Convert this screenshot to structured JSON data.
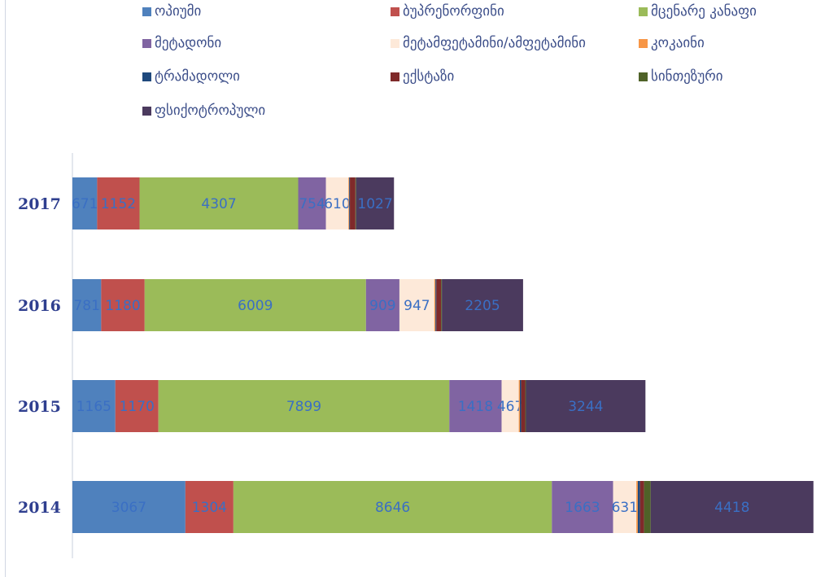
{
  "chart_data": {
    "type": "bar",
    "orientation": "horizontal",
    "stacked": true,
    "title": "",
    "xlabel": "",
    "ylabel": "",
    "categories": [
      "2017",
      "2016",
      "2015",
      "2014"
    ],
    "series": [
      {
        "name": "ოპიუმი",
        "color": "#4f81bd",
        "values": [
          671,
          781,
          1165,
          3067
        ]
      },
      {
        "name": "ბუპრენორფინი",
        "color": "#c0504d",
        "values": [
          1152,
          1180,
          1170,
          1304
        ]
      },
      {
        "name": "მცენარე კანაფი",
        "color": "#9bbb59",
        "values": [
          4307,
          6009,
          7899,
          8646
        ]
      },
      {
        "name": "მეტადონი",
        "color": "#8064a2",
        "values": [
          754,
          909,
          1418,
          1663
        ]
      },
      {
        "name": "მეტამფეტამინი/ამფეტამინი",
        "color": "#fde9d9",
        "values": [
          610,
          947,
          467,
          631
        ]
      },
      {
        "name": "კოკაინი",
        "color": "#f79646",
        "values": [
          20,
          30,
          30,
          40
        ]
      },
      {
        "name": "ტრამადოლი",
        "color": "#1f497d",
        "values": [
          20,
          25,
          35,
          60
        ]
      },
      {
        "name": "ექსტაზი",
        "color": "#7f2a2a",
        "values": [
          150,
          130,
          110,
          110
        ]
      },
      {
        "name": "სინთეზური",
        "color": "#4f6228",
        "values": [
          20,
          20,
          20,
          180
        ]
      },
      {
        "name": "ფსიქოტროპული",
        "color": "#4b3a5e",
        "values": [
          1027,
          2205,
          3244,
          4418
        ]
      }
    ],
    "data_labels": [
      [
        "671",
        "1152",
        "4307",
        "754",
        "610",
        "",
        "",
        "",
        "",
        "1027"
      ],
      [
        "781",
        "1180",
        "6009",
        "909",
        "947",
        "",
        "",
        "",
        "",
        "2205"
      ],
      [
        "1165",
        "1170",
        "7899",
        "1418",
        "467",
        "",
        "",
        "",
        "",
        "3244"
      ],
      [
        "3067",
        "1304",
        "8646",
        "1663",
        "631",
        "",
        "",
        "",
        "",
        "4418"
      ]
    ],
    "legend_position": "top",
    "grid": false
  }
}
